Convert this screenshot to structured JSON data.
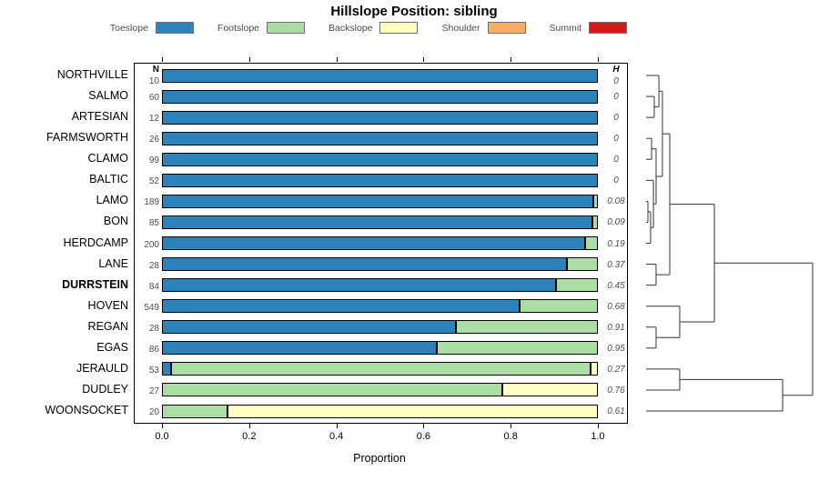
{
  "title": "Hillslope Position: sibling",
  "legend": [
    {
      "label": "Toeslope",
      "color": "#2b83ba"
    },
    {
      "label": "Footslope",
      "color": "#abdda4"
    },
    {
      "label": "Backslope",
      "color": "#ffffbf"
    },
    {
      "label": "Shoulder",
      "color": "#fdae61"
    },
    {
      "label": "Summit",
      "color": "#d7191c"
    }
  ],
  "columns": {
    "n_header": "N",
    "h_header": "H"
  },
  "x_axis": {
    "label": "Proportion",
    "ticks": [
      "0.0",
      "0.2",
      "0.4",
      "0.6",
      "0.8",
      "1.0"
    ]
  },
  "emphasized_category": "DURRSTEIN",
  "chart_data": {
    "type": "bar",
    "orientation": "horizontal-stacked",
    "title": "Hillslope Position: sibling",
    "xlabel": "Proportion",
    "xlim": [
      0,
      1
    ],
    "grid": false,
    "legend_position": "top",
    "categories": [
      "NORTHVILLE",
      "SALMO",
      "ARTESIAN",
      "FARMSWORTH",
      "CLAMO",
      "BALTIC",
      "LAMO",
      "BON",
      "HERDCAMP",
      "LANE",
      "DURRSTEIN",
      "HOVEN",
      "REGAN",
      "EGAS",
      "JERAULD",
      "DUDLEY",
      "WOONSOCKET"
    ],
    "n_values": [
      10,
      60,
      12,
      26,
      99,
      52,
      189,
      85,
      200,
      28,
      84,
      549,
      28,
      86,
      53,
      27,
      20
    ],
    "h_values": [
      "0",
      "0",
      "0",
      "0",
      "0",
      "0",
      "0.08",
      "0.09",
      "0.19",
      "0.37",
      "0.45",
      "0.68",
      "0.91",
      "0.95",
      "0.27",
      "0.76",
      "0.61"
    ],
    "series": [
      {
        "name": "Toeslope",
        "values": [
          1,
          1,
          1,
          1,
          1,
          1,
          0.99,
          0.988,
          0.97,
          0.93,
          0.905,
          0.82,
          0.675,
          0.63,
          0.02,
          0,
          0
        ]
      },
      {
        "name": "Footslope",
        "values": [
          0,
          0,
          0,
          0,
          0,
          0,
          0.01,
          0.012,
          0.03,
          0.07,
          0.095,
          0.18,
          0.325,
          0.37,
          0.963,
          0.78,
          0.15
        ]
      },
      {
        "name": "Backslope",
        "values": [
          0,
          0,
          0,
          0,
          0,
          0,
          0,
          0,
          0,
          0,
          0,
          0,
          0,
          0,
          0.017,
          0.22,
          0.85
        ]
      },
      {
        "name": "Shoulder",
        "values": [
          0,
          0,
          0,
          0,
          0,
          0,
          0,
          0,
          0,
          0,
          0,
          0,
          0,
          0,
          0,
          0,
          0
        ]
      },
      {
        "name": "Summit",
        "values": [
          0,
          0,
          0,
          0,
          0,
          0,
          0,
          0,
          0,
          0,
          0,
          0,
          0,
          0,
          0,
          0,
          0
        ]
      }
    ]
  },
  "dendrogram": {
    "leaves": 17,
    "merges": [
      {
        "id": "M1",
        "a": "L1",
        "b": "L2",
        "h": 0.049
      },
      {
        "id": "M2",
        "a": "L0",
        "b": "M1",
        "h": 0.077
      },
      {
        "id": "M3",
        "a": "L3",
        "b": "L4",
        "h": 0.033
      },
      {
        "id": "M4",
        "a": "L6",
        "b": "L7",
        "h": 0.011
      },
      {
        "id": "M5",
        "a": "M4",
        "b": "L8",
        "h": 0.027
      },
      {
        "id": "M6",
        "a": "L5",
        "b": "M5",
        "h": 0.044
      },
      {
        "id": "M7",
        "a": "M3",
        "b": "M6",
        "h": 0.06
      },
      {
        "id": "M8",
        "a": "M2",
        "b": "M7",
        "h": 0.098
      },
      {
        "id": "M10",
        "a": "L9",
        "b": "L10",
        "h": 0.06
      },
      {
        "id": "M9",
        "a": "M8",
        "b": "M10",
        "h": 0.142
      },
      {
        "id": "M11",
        "a": "L12",
        "b": "L13",
        "h": 0.06
      },
      {
        "id": "M12",
        "a": "L11",
        "b": "M11",
        "h": 0.202
      },
      {
        "id": "M13",
        "a": "M9",
        "b": "M12",
        "h": 0.41
      },
      {
        "id": "M14",
        "a": "L14",
        "b": "L15",
        "h": 0.202
      },
      {
        "id": "M15",
        "a": "M14",
        "b": "L16",
        "h": 0.82
      },
      {
        "id": "M16",
        "a": "M13",
        "b": "M15",
        "h": 1.0
      }
    ]
  }
}
